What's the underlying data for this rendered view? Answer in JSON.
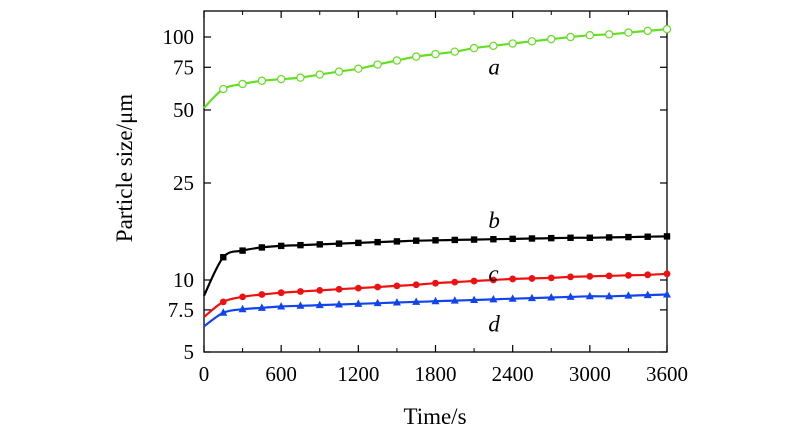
{
  "chart_data": {
    "type": "line",
    "xlabel": "Time/s",
    "ylabel": "Particle size/μm",
    "xlim": [
      0,
      3600
    ],
    "ylim": [
      5,
      118
    ],
    "y_scale": "custom-compressed-log",
    "x_ticks": [
      0,
      600,
      1200,
      1800,
      2400,
      3000,
      3600
    ],
    "y_ticks": [
      5,
      7.5,
      10,
      25,
      50,
      75,
      100
    ],
    "x_tick_labels": [
      "0",
      "600",
      "1200",
      "1800",
      "2400",
      "3000",
      "3600"
    ],
    "y_tick_labels": [
      "5",
      "7.5",
      "10",
      "25",
      "50",
      "75",
      "100"
    ],
    "grid": false,
    "legend": "none",
    "series": [
      {
        "name": "a",
        "color": "#66dd22",
        "marker": "open-circle",
        "fit_start": 51,
        "label_at": [
          2250,
          75
        ],
        "x": [
          150,
          300,
          450,
          600,
          750,
          900,
          1050,
          1200,
          1350,
          1500,
          1650,
          1800,
          1950,
          2100,
          2250,
          2400,
          2550,
          2700,
          2850,
          3000,
          3150,
          3300,
          3450,
          3600
        ],
        "y": [
          61,
          64,
          66,
          67,
          68,
          70,
          72,
          74,
          77,
          80,
          83,
          85,
          87,
          90,
          92,
          94,
          96,
          98,
          100,
          102,
          103,
          105,
          107,
          109
        ]
      },
      {
        "name": "b",
        "color": "#000000",
        "marker": "filled-square",
        "fit_start": 8.6,
        "label_at": [
          2250,
          17.5
        ],
        "x": [
          150,
          300,
          450,
          600,
          750,
          900,
          1050,
          1200,
          1350,
          1500,
          1650,
          1800,
          1950,
          2100,
          2250,
          2400,
          2550,
          2700,
          2850,
          3000,
          3150,
          3300,
          3450,
          3600
        ],
        "y": [
          12.4,
          13.2,
          13.6,
          13.8,
          13.9,
          14.0,
          14.1,
          14.2,
          14.3,
          14.4,
          14.5,
          14.55,
          14.6,
          14.65,
          14.7,
          14.75,
          14.8,
          14.85,
          14.9,
          14.9,
          14.95,
          15.0,
          15.05,
          15.1
        ]
      },
      {
        "name": "c",
        "color": "#ee1111",
        "marker": "filled-circle",
        "fit_start": 7.0,
        "label_at": [
          2250,
          10.6
        ],
        "x": [
          150,
          300,
          450,
          600,
          750,
          900,
          1050,
          1200,
          1350,
          1500,
          1650,
          1800,
          1950,
          2100,
          2250,
          2400,
          2550,
          2700,
          2850,
          3000,
          3150,
          3300,
          3450,
          3600
        ],
        "y": [
          8.1,
          8.5,
          8.7,
          8.85,
          8.95,
          9.05,
          9.15,
          9.25,
          9.35,
          9.45,
          9.55,
          9.7,
          9.8,
          9.9,
          10.0,
          10.1,
          10.15,
          10.2,
          10.3,
          10.35,
          10.4,
          10.45,
          10.5,
          10.6
        ]
      },
      {
        "name": "d",
        "color": "#1144ee",
        "marker": "filled-triangle",
        "fit_start": 6.4,
        "label_at": [
          2250,
          6.5
        ],
        "x": [
          150,
          300,
          450,
          600,
          750,
          900,
          1050,
          1200,
          1350,
          1500,
          1650,
          1800,
          1950,
          2100,
          2250,
          2400,
          2550,
          2700,
          2850,
          3000,
          3150,
          3300,
          3450,
          3600
        ],
        "y": [
          7.3,
          7.55,
          7.65,
          7.75,
          7.8,
          7.85,
          7.9,
          7.95,
          8.0,
          8.05,
          8.1,
          8.15,
          8.2,
          8.25,
          8.3,
          8.35,
          8.4,
          8.45,
          8.5,
          8.55,
          8.55,
          8.6,
          8.65,
          8.7
        ]
      }
    ]
  }
}
